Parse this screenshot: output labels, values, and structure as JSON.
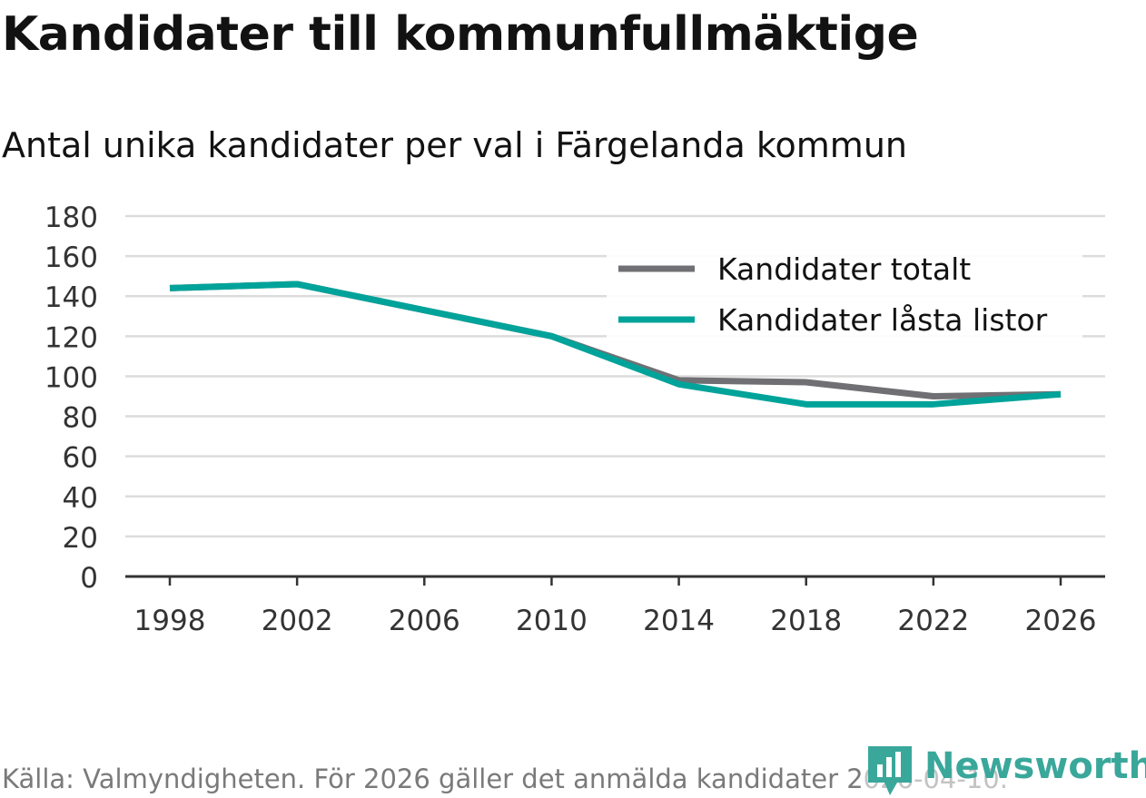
{
  "chart_data": {
    "type": "line",
    "title": "Kandidater till kommunfullmäktige",
    "subtitle": "Antal unika kandidater per val i Färgelanda kommun",
    "x": [
      "1998",
      "2002",
      "2006",
      "2010",
      "2014",
      "2018",
      "2022",
      "2026"
    ],
    "y_ticks": [
      "0",
      "20",
      "40",
      "60",
      "80",
      "100",
      "120",
      "140",
      "160",
      "180"
    ],
    "ylim": [
      0,
      180
    ],
    "xlabel": "",
    "ylabel": "",
    "grid": true,
    "legend_position": "top-right",
    "series": [
      {
        "name": "Kandidater totalt",
        "color": "#707074",
        "values": [
          144,
          146,
          133,
          120,
          98,
          97,
          90,
          91
        ]
      },
      {
        "name": "Kandidater låsta listor",
        "color": "#00a39a",
        "values": [
          144,
          146,
          133,
          120,
          96,
          86,
          86,
          91
        ]
      }
    ]
  },
  "footer": {
    "source": "Källa: Valmyndigheten. För 2026 gäller det anmälda kandidater 2026-04-10.",
    "brand": "Newsworthy",
    "brand_color": "#3aa79b"
  }
}
